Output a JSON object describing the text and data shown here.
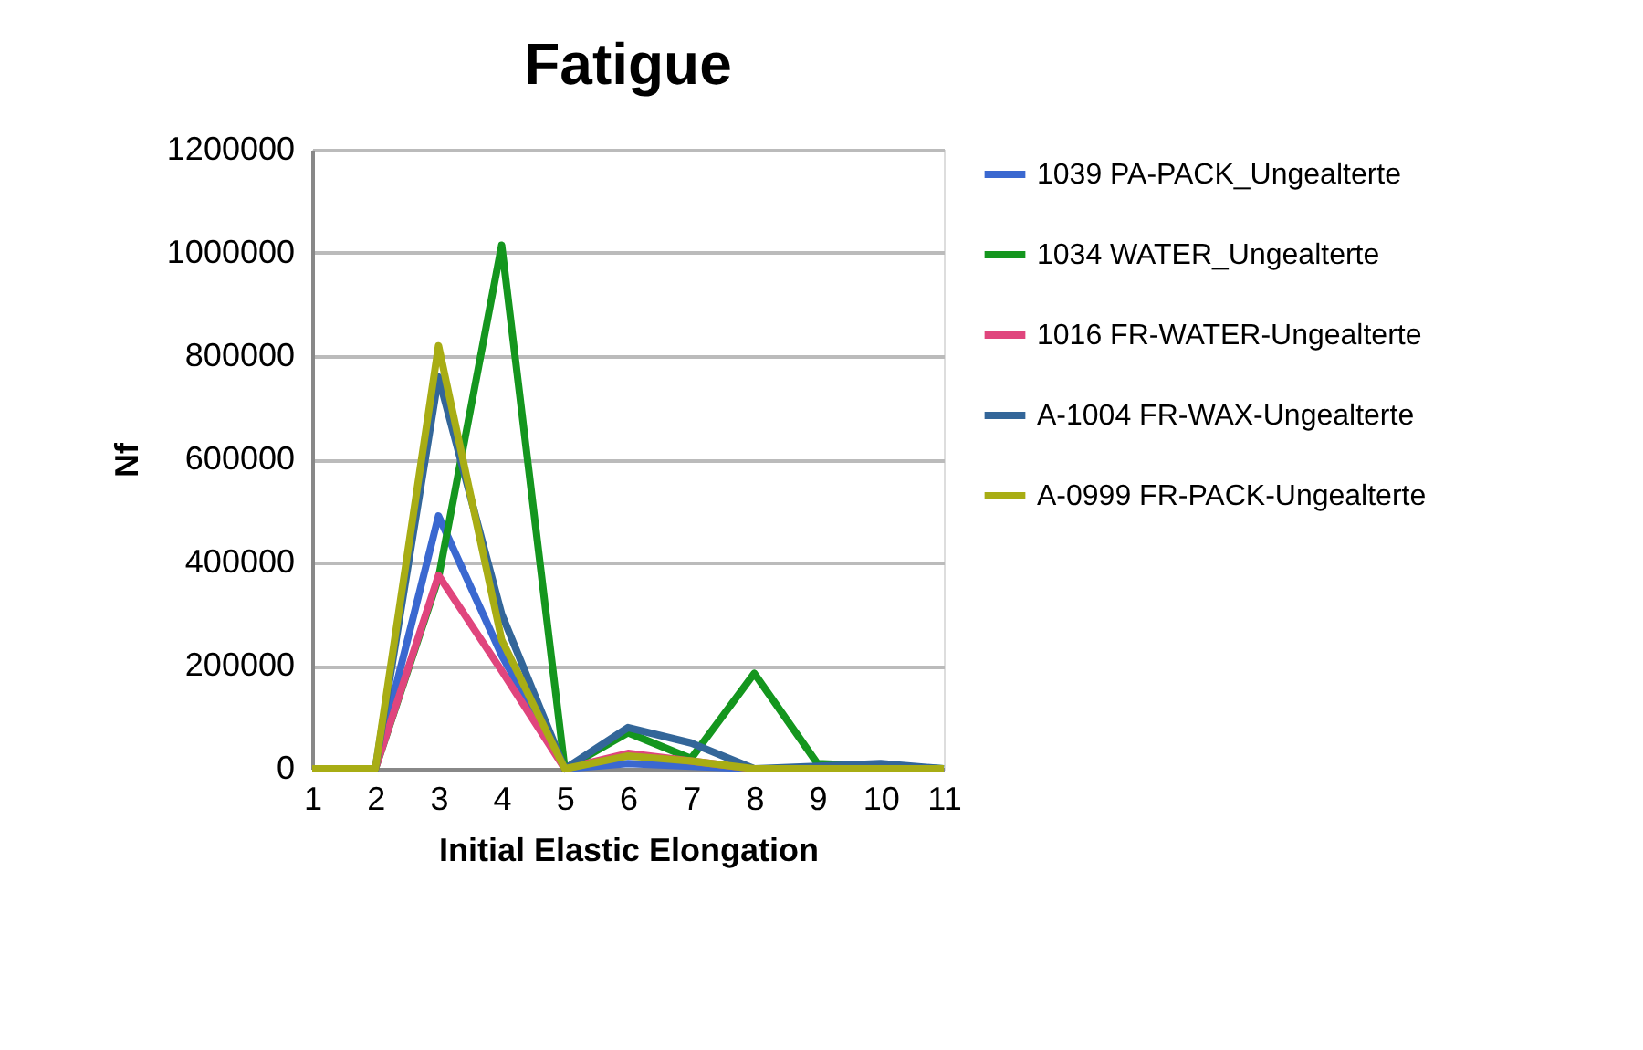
{
  "chart_data": {
    "type": "line",
    "title": "Fatigue",
    "xlabel": "Initial Elastic Elongation",
    "ylabel": "Nf",
    "categories": [
      "1",
      "2",
      "3",
      "4",
      "5",
      "6",
      "7",
      "8",
      "9",
      "10",
      "11"
    ],
    "series": [
      {
        "name": "1039 PA-PACK_Ungealterte",
        "color": "#3a68d0",
        "values": [
          0,
          0,
          490000,
          220000,
          0,
          10000,
          5000,
          0,
          0,
          0,
          0
        ]
      },
      {
        "name": "1034 WATER_Ungealterte",
        "color": "#14961e",
        "values": [
          0,
          0,
          370000,
          1015000,
          0,
          70000,
          20000,
          185000,
          10000,
          5000,
          0
        ]
      },
      {
        "name": " 1016 FR-WATER-Ungealterte",
        "color": "#e0457d",
        "values": [
          0,
          0,
          375000,
          190000,
          0,
          30000,
          15000,
          0,
          null,
          null,
          null
        ]
      },
      {
        "name": "A-1004 FR-WAX-Ungealterte",
        "color": "#336699",
        "values": [
          0,
          0,
          760000,
          300000,
          0,
          80000,
          50000,
          0,
          5000,
          10000,
          0
        ]
      },
      {
        "name": "A-0999 FR-PACK-Ungealterte",
        "color": "#a8ad14",
        "values": [
          0,
          0,
          820000,
          250000,
          0,
          25000,
          15000,
          0,
          0,
          0,
          0
        ]
      }
    ],
    "ylim": [
      0,
      1200000
    ],
    "yticks": [
      0,
      200000,
      400000,
      600000,
      800000,
      1000000,
      1200000
    ],
    "grid": "y",
    "legend": "right",
    "marker": "none",
    "line_style": "solid"
  }
}
